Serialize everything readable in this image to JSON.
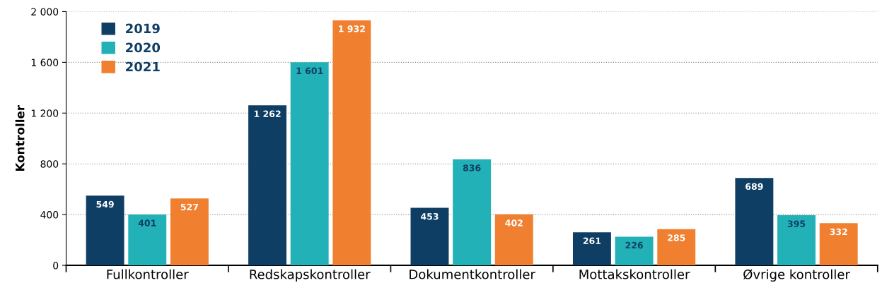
{
  "chart_data": {
    "type": "bar",
    "ylabel": "Kontroller",
    "categories": [
      "Fullkontroller",
      "Redskapskontroller",
      "Dokumentkontroller",
      "Mottakskontroller",
      "Øvrige kontroller"
    ],
    "series": [
      {
        "name": "2019",
        "color": "#0f3e64",
        "values": [
          549,
          1262,
          453,
          261,
          689
        ],
        "value_labels": [
          "549",
          "1 262",
          "453",
          "261",
          "689"
        ]
      },
      {
        "name": "2020",
        "color": "#22b1b6",
        "values": [
          401,
          1601,
          836,
          226,
          395
        ],
        "value_labels": [
          "401",
          "1 601",
          "836",
          "226",
          "395"
        ]
      },
      {
        "name": "2021",
        "color": "#f08030",
        "values": [
          527,
          1932,
          402,
          285,
          332
        ],
        "value_labels": [
          "527",
          "1 932",
          "402",
          "285",
          "332"
        ]
      }
    ],
    "ylim": [
      0,
      2000
    ],
    "yticks": [
      {
        "value": 0,
        "label": "0"
      },
      {
        "value": 400,
        "label": "400"
      },
      {
        "value": 800,
        "label": "800"
      },
      {
        "value": 1200,
        "label": "1 200"
      },
      {
        "value": 1600,
        "label": "1 600"
      },
      {
        "value": 2000,
        "label": "2 000"
      }
    ],
    "grid": "y",
    "legend": "top left"
  }
}
